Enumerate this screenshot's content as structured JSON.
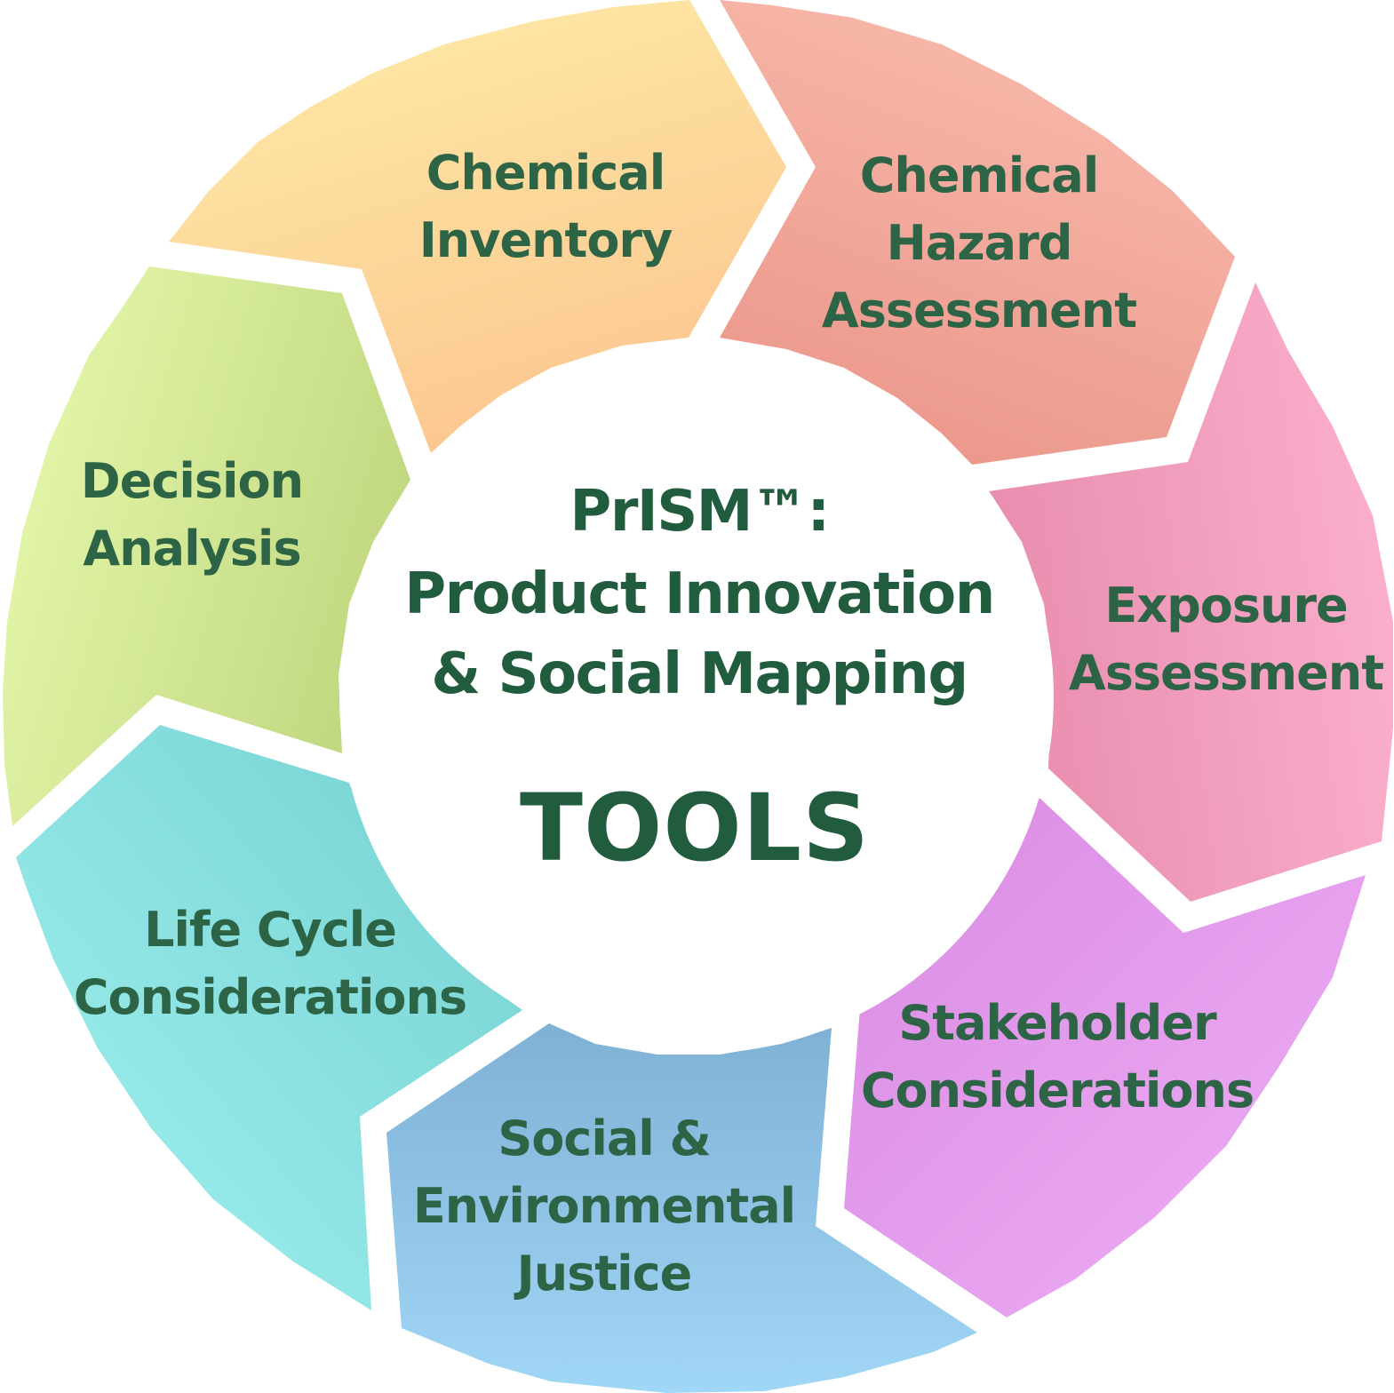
{
  "center": {
    "title_line1": "PrISM™:",
    "title_line2": "Product Innovation",
    "title_line3": "& Social Mapping",
    "tools": "TOOLS",
    "text_color": "#215c3f"
  },
  "segments": [
    {
      "id": "chemical-inventory",
      "lines": [
        "Chemical",
        "Inventory"
      ],
      "color_outer": "#fdeaa5",
      "color_inner": "#fcc48f"
    },
    {
      "id": "chemical-hazard-assessment",
      "lines": [
        "Chemical",
        "Hazard",
        "Assessment"
      ],
      "color_outer": "#f9bcae",
      "color_inner": "#eb968a"
    },
    {
      "id": "exposure-assessment",
      "lines": [
        "Exposure",
        "Assessment"
      ],
      "color_outer": "#fbafcd",
      "color_inner": "#e88cae"
    },
    {
      "id": "stakeholder-considerations",
      "lines": [
        "Stakeholder",
        "Considerations"
      ],
      "color_outer": "#efb0f6",
      "color_inner": "#d98ae2"
    },
    {
      "id": "social-environmental-justice",
      "lines": [
        "Social &",
        "Environmental",
        "Justice"
      ],
      "color_outer": "#a0d6f6",
      "color_inner": "#7fb1d5"
    },
    {
      "id": "life-cycle-considerations",
      "lines": [
        "Life Cycle",
        "Considerations"
      ],
      "color_outer": "#a1f3f1",
      "color_inner": "#74cfd0"
    },
    {
      "id": "decision-analysis",
      "lines": [
        "Decision",
        "Analysis"
      ],
      "color_outer": "#e5f7ab",
      "color_inner": "#bdd57c"
    }
  ],
  "label_color": "#2e6446"
}
